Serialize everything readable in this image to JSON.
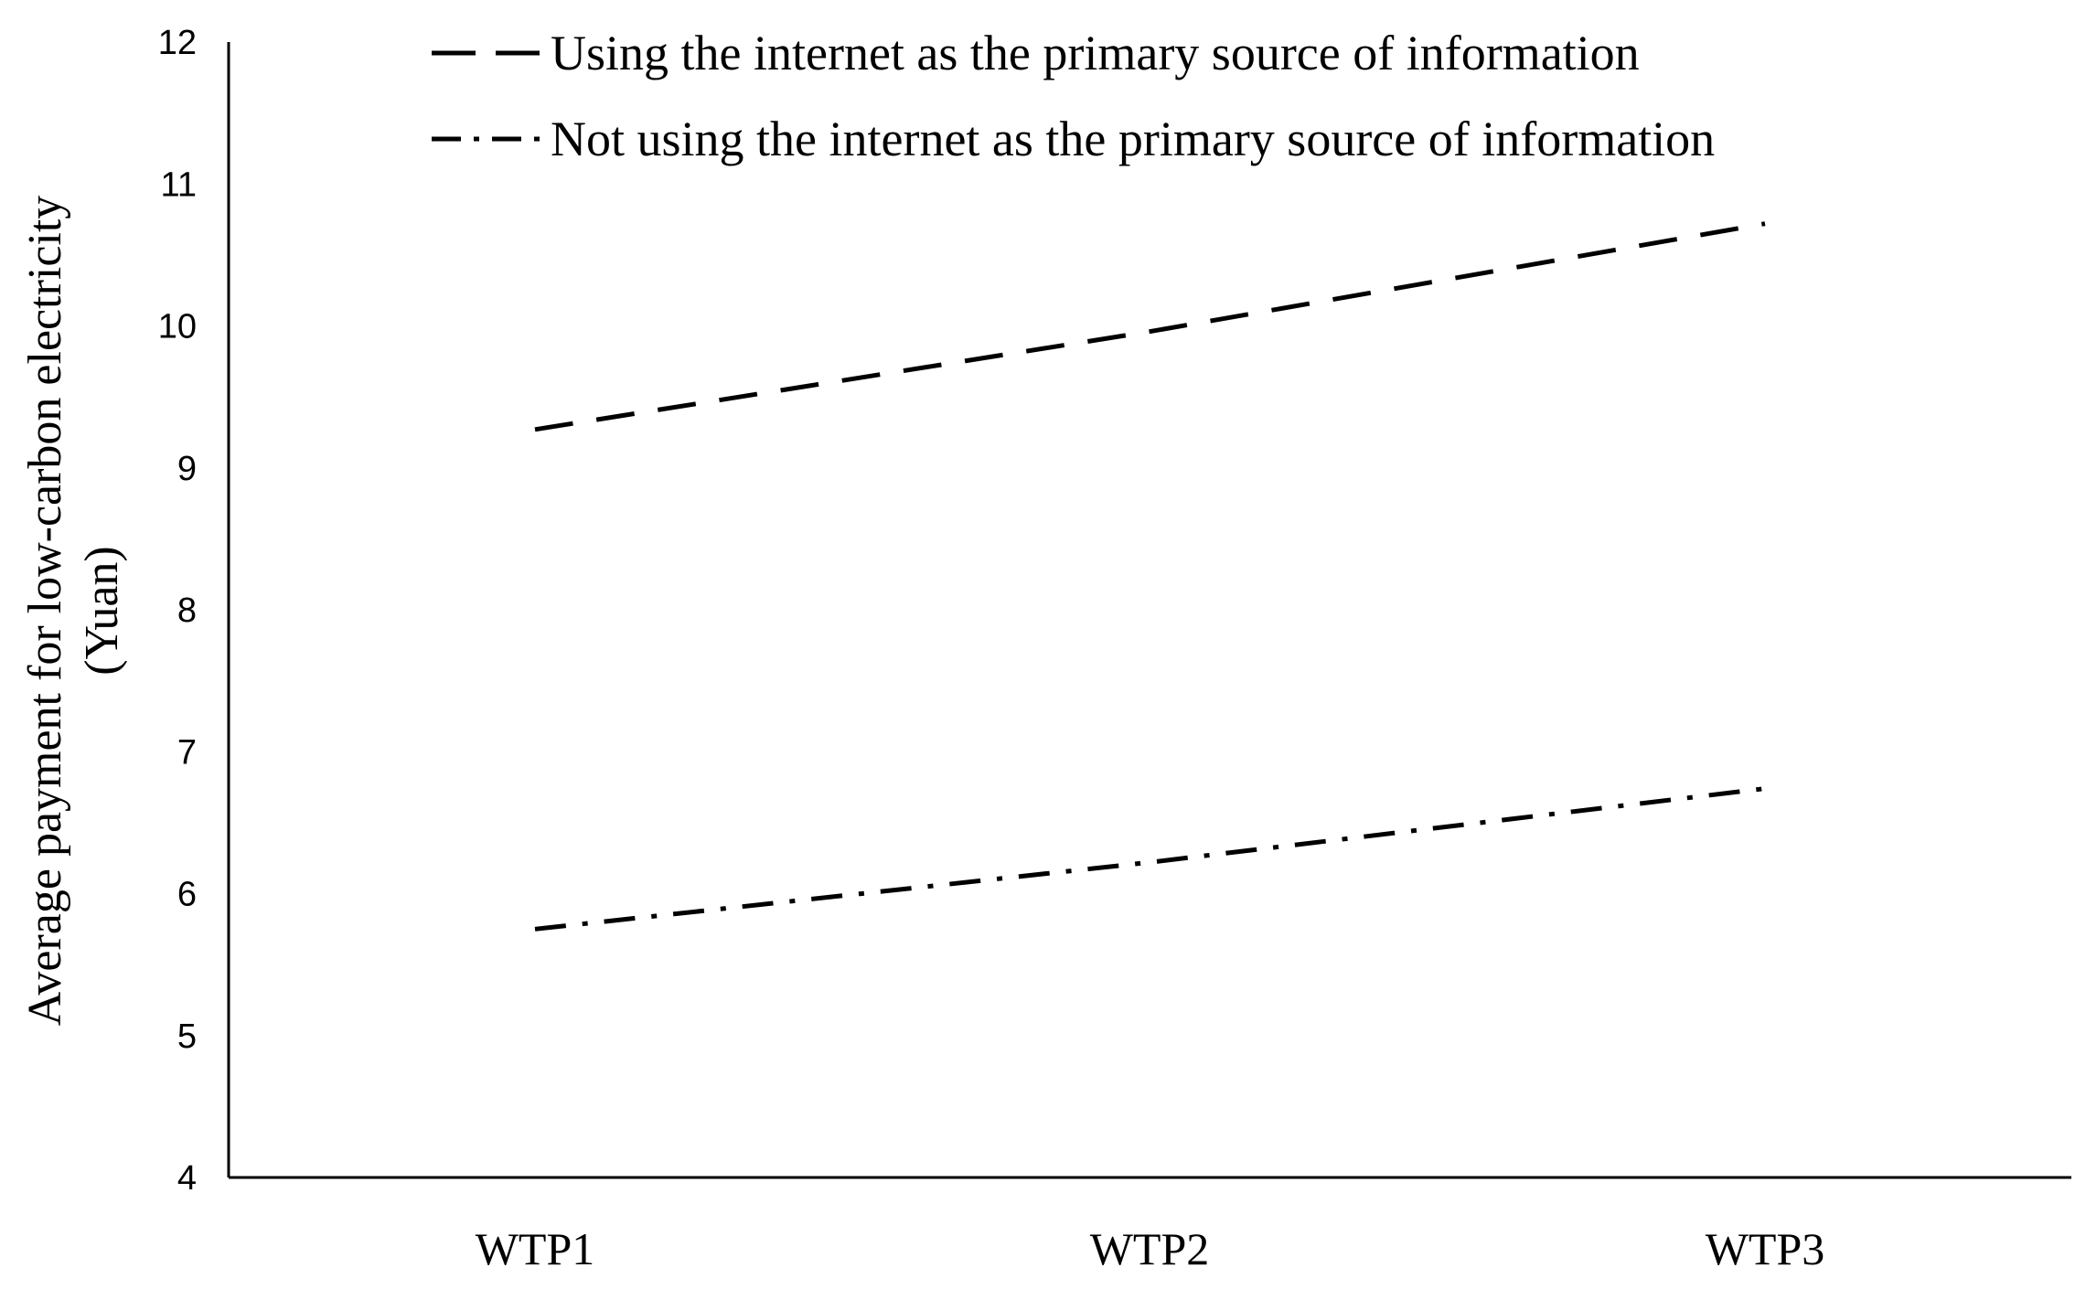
{
  "chart_data": {
    "type": "line",
    "title": "",
    "xlabel": "",
    "ylabel_lines": [
      "Average payment for low-carbon electricity",
      "(Yuan)"
    ],
    "categories": [
      "WTP1",
      "WTP2",
      "WTP3"
    ],
    "ylim": [
      4,
      12
    ],
    "yticks": [
      "4",
      "5",
      "6",
      "7",
      "8",
      "9",
      "10",
      "11",
      "12"
    ],
    "grid": false,
    "legend_position": "top-center",
    "series": [
      {
        "name": "Using the internet as the primary source of information",
        "values": [
          9.27,
          9.96,
          10.72
        ],
        "style": "dashed",
        "color": "#000000"
      },
      {
        "name": "Not using the internet as the primary source of information",
        "values": [
          5.75,
          6.22,
          6.74
        ],
        "style": "dash-dot",
        "color": "#000000"
      }
    ]
  }
}
